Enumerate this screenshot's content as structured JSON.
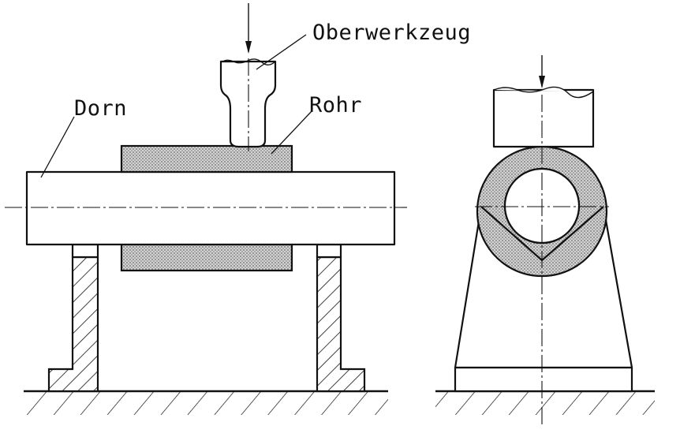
{
  "labels": {
    "upper_tool": "Oberwerkzeug",
    "mandrel": "Dorn",
    "tube": "Rohr"
  },
  "colors": {
    "line": "#111111",
    "stipple_fill": "#c9c9c9",
    "background": "#ffffff"
  }
}
